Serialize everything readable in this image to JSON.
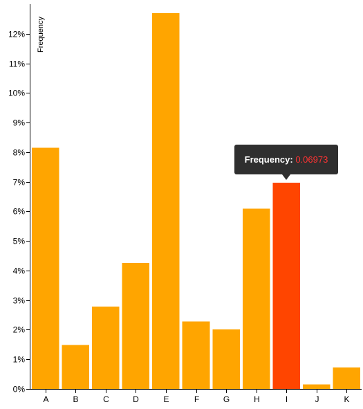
{
  "chart_data": {
    "type": "bar",
    "ylabel": "Frequency",
    "categories": [
      "A",
      "B",
      "C",
      "D",
      "E",
      "F",
      "G",
      "H",
      "I",
      "J",
      "K"
    ],
    "values": [
      0.0815,
      0.0148,
      0.0278,
      0.0425,
      0.127,
      0.0228,
      0.0201,
      0.0609,
      0.06973,
      0.0015,
      0.0072
    ],
    "ylim": [
      0,
      0.13
    ],
    "y_ticks": [
      "0%",
      "1%",
      "2%",
      "3%",
      "4%",
      "5%",
      "6%",
      "7%",
      "8%",
      "9%",
      "10%",
      "11%",
      "12%"
    ],
    "highlighted_category": "I",
    "grid": false,
    "colors": {
      "bar": "#ffa500",
      "highlight": "#ff4500"
    }
  },
  "tooltip": {
    "label": "Frequency:",
    "value": "0.06973"
  }
}
